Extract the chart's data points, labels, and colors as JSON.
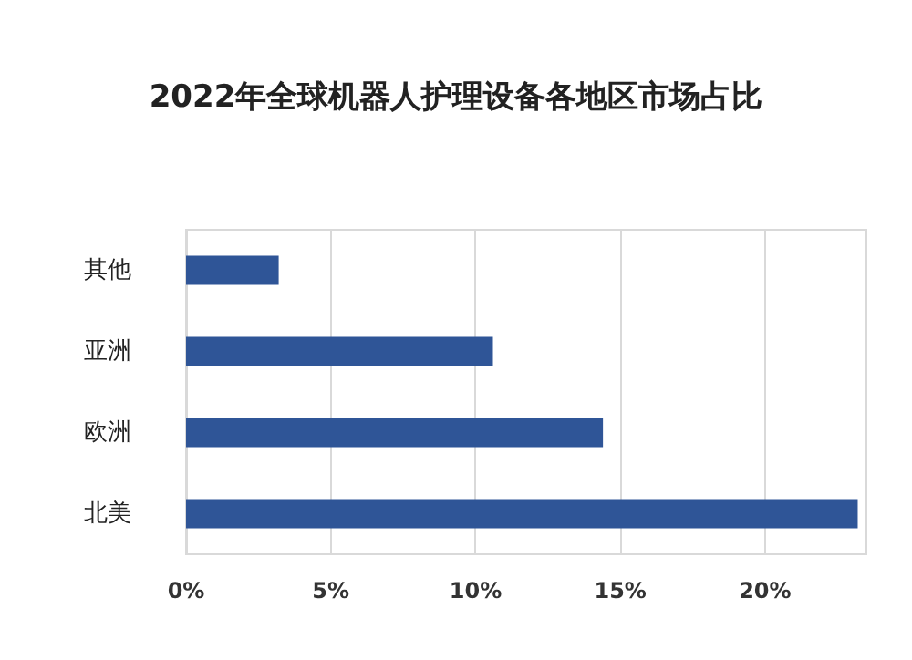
{
  "chart_data": {
    "type": "bar",
    "title": "2022年全球机器人护理设备各地区市场占比",
    "orientation": "horizontal",
    "categories": [
      "其他",
      "亚洲",
      "欧洲",
      "北美"
    ],
    "values": [
      3.2,
      10.6,
      14.4,
      23.2
    ],
    "color": "#2f5597",
    "xlim": [
      0,
      23.5
    ],
    "xticks": [
      {
        "value": 0,
        "label": "0%"
      },
      {
        "value": 5,
        "label": "5%"
      },
      {
        "value": 10,
        "label": "10%"
      },
      {
        "value": 15,
        "label": "15%"
      },
      {
        "value": 20,
        "label": "20%"
      }
    ],
    "grid": "x"
  }
}
